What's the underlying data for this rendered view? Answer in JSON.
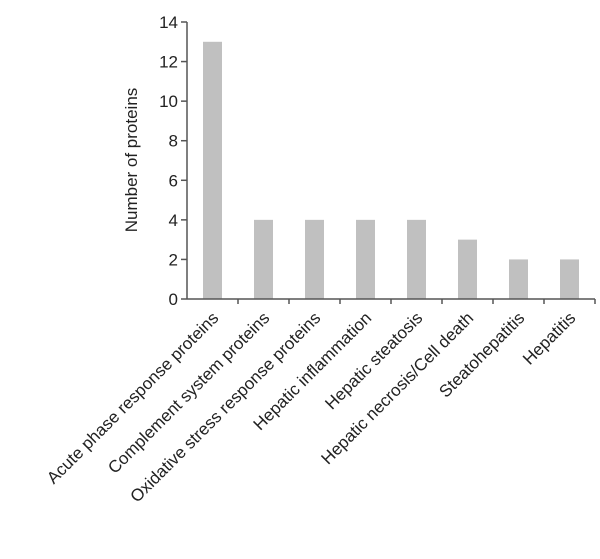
{
  "chart_data": {
    "type": "bar",
    "title": "",
    "xlabel": "",
    "ylabel": "Number of proteins",
    "ylim": [
      0,
      14
    ],
    "yticks": [
      0,
      2,
      4,
      6,
      8,
      10,
      12,
      14
    ],
    "grid": false,
    "legend": "none",
    "bar_color": "#c0c0c0",
    "axis_color": "#555555",
    "categories": [
      "Acute phase response proteins",
      "Complement system proteins",
      "Oxidative stress response proteins",
      "Hepatic inflammation",
      "Hepatic steatosis",
      "Hepatic necrosis/Cell death",
      "Steatohepatitis",
      "Hepatitis"
    ],
    "values": [
      13,
      4,
      4,
      4,
      4,
      3,
      2,
      2
    ]
  }
}
